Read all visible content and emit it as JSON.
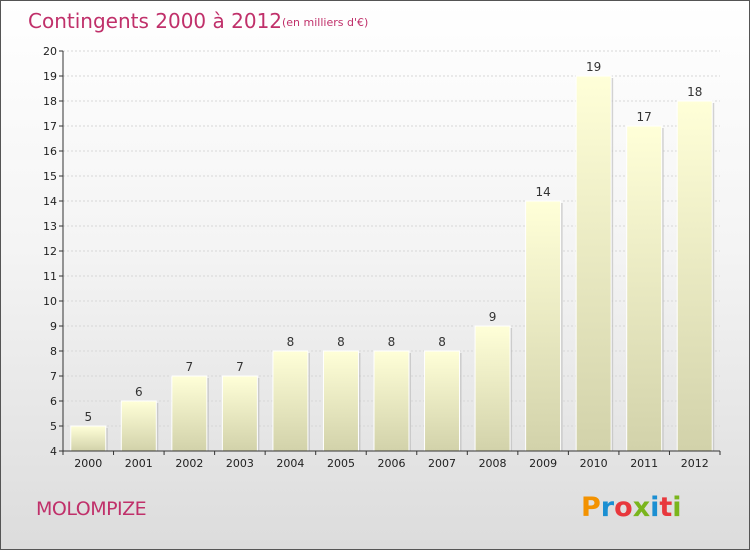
{
  "chart_data": {
    "type": "bar",
    "title": "Contingents 2000 à 2012",
    "subtitle": "(en milliers d'€)",
    "categories": [
      "2000",
      "2001",
      "2002",
      "2003",
      "2004",
      "2005",
      "2006",
      "2007",
      "2008",
      "2009",
      "2010",
      "2011",
      "2012"
    ],
    "values": [
      5,
      6,
      7,
      7,
      8,
      8,
      8,
      8,
      9,
      14,
      19,
      17,
      18
    ],
    "ylim": [
      4,
      20
    ],
    "yticks": [
      4,
      5,
      6,
      7,
      8,
      9,
      10,
      11,
      12,
      13,
      14,
      15,
      16,
      17,
      18,
      19,
      20
    ],
    "grid": true,
    "xlabel": "",
    "ylabel": ""
  },
  "place_name": "MOLOMPIZE",
  "logo": {
    "text": "Proxiti",
    "letters": [
      "P",
      "r",
      "o",
      "x",
      "i",
      "t",
      "i"
    ],
    "colors": [
      "#f39200",
      "#1b8fd2",
      "#e8383d",
      "#7ab51d",
      "#1b8fd2",
      "#e8383d",
      "#7ab51d"
    ]
  },
  "colors": {
    "accent": "#c0306a",
    "bar_top": "#ffffd8",
    "bar_bottom": "#d2d2aa"
  }
}
